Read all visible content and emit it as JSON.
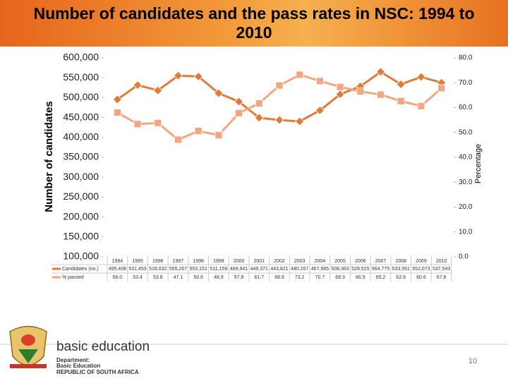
{
  "chart_data": {
    "type": "line",
    "title": "Number of candidates and the pass rates in NSC: 1994 to 2010",
    "ylabel": "Number of candidates",
    "y2label": "Percentage",
    "categories": [
      "1994",
      "1995",
      "1996",
      "1997",
      "1998",
      "1999",
      "2000",
      "2001",
      "2002",
      "2003",
      "2004",
      "2005",
      "2006",
      "2007",
      "2008",
      "2009",
      "2010"
    ],
    "series": [
      {
        "name": "Candidates (no.)",
        "color": "#e07b39",
        "values": [
          495408,
          531453,
          518032,
          555267,
          553151,
          511159,
          489941,
          449371,
          443821,
          440267,
          467985,
          508363,
          528525,
          564775,
          533561,
          552073,
          537543
        ],
        "value_labels": [
          "495,408",
          "531,453",
          "518,032",
          "555,267",
          "553,151",
          "511,159",
          "489,941",
          "449,371",
          "443,821",
          "440,267",
          "467,985",
          "508,363",
          "528,525",
          "564,775",
          "533,561",
          "552,073",
          "537,543"
        ]
      },
      {
        "name": "% passed",
        "color": "#f4a582",
        "axis": "y2",
        "values": [
          58.0,
          53.4,
          53.8,
          47.1,
          50.6,
          48.9,
          57.8,
          61.7,
          68.9,
          73.2,
          70.7,
          68.3,
          66.5,
          65.2,
          62.6,
          60.6,
          67.8
        ],
        "value_labels": [
          "58.0",
          "53.4",
          "53.8",
          "47.1",
          "50.6",
          "48.9",
          "57.8",
          "61.7",
          "68.9",
          "73.2",
          "70.7",
          "68.3",
          "66.5",
          "65.2",
          "62.6",
          "60.6",
          "67.8"
        ]
      }
    ],
    "ylim": [
      100000,
      600000
    ],
    "yticks": [
      {
        "value": 100000,
        "label": "100,000"
      },
      {
        "value": 150000,
        "label": "150,000"
      },
      {
        "value": 200000,
        "label": "200,000"
      },
      {
        "value": 250000,
        "label": "250,000"
      },
      {
        "value": 300000,
        "label": "300,000"
      },
      {
        "value": 350000,
        "label": "350,000"
      },
      {
        "value": 400000,
        "label": "400,000"
      },
      {
        "value": 450000,
        "label": "450,000"
      },
      {
        "value": 500000,
        "label": "500,000"
      },
      {
        "value": 550000,
        "label": "550,000"
      },
      {
        "value": 600000,
        "label": "600,000"
      }
    ],
    "y2lim": [
      0,
      80
    ],
    "y2ticks": [
      {
        "value": 0,
        "label": "0.0"
      },
      {
        "value": 10,
        "label": "10.0"
      },
      {
        "value": 20,
        "label": "20.0"
      },
      {
        "value": 30,
        "label": "30.0"
      },
      {
        "value": 40,
        "label": "40.0"
      },
      {
        "value": 50,
        "label": "50.0"
      },
      {
        "value": 60,
        "label": "60.0"
      },
      {
        "value": 70,
        "label": "70.0"
      },
      {
        "value": 80,
        "label": "80.0"
      }
    ],
    "grid": false
  },
  "logo": {
    "brand": "basic education",
    "dept": [
      "Department:",
      "Basic Education",
      "REPUBLIC OF SOUTH AFRICA"
    ]
  },
  "page_number": "10"
}
